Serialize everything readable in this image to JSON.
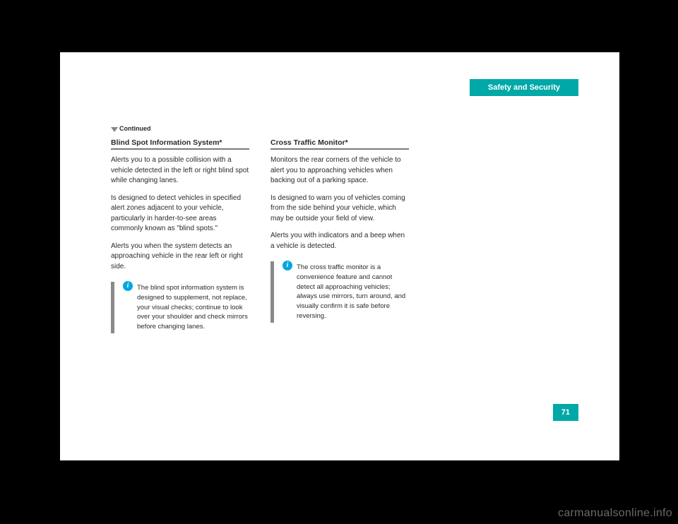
{
  "header": {
    "tab": "Safety and Security"
  },
  "continued": "Continued",
  "sections": [
    {
      "title": "Blind Spot Information System*",
      "paragraphs": [
        "Alerts you to a possible collision with a vehicle detected in the left or right blind spot while changing lanes.",
        "Is designed to detect vehicles in specified alert zones adjacent to your vehicle, particularly in harder-to-see areas commonly known as \"blind spots.\"",
        "Alerts you when the system detects an approaching vehicle in the rear left or right side."
      ],
      "info": "The blind spot information system is designed to supplement, not replace, your visual checks; continue to look over your shoulder and check mirrors before changing lanes."
    },
    {
      "title": "Cross Traffic Monitor*",
      "paragraphs": [
        "Monitors the rear corners of the vehicle to alert you to approaching vehicles when backing out of a parking space.",
        "Is designed to warn you of vehicles coming from the side behind your vehicle, which may be outside your field of view.",
        "Alerts you with indicators and a beep when a vehicle is detected."
      ],
      "info": "The cross traffic monitor is a convenience feature and cannot detect all approaching vehicles; always use mirrors, turn around, and visually confirm it is safe before reversing."
    }
  ],
  "page_number": "71",
  "watermark": "carmanualsonline.info",
  "colors": {
    "accent": "#00a8a8",
    "info_icon": "#00a8e0",
    "rule": "#7a7a7a",
    "bar": "#8a8a8a",
    "marker": "#868686",
    "watermark": "#6a6a6a",
    "text": "#2a2a2a",
    "page_bg": "#ffffff",
    "body_bg": "#000000"
  }
}
